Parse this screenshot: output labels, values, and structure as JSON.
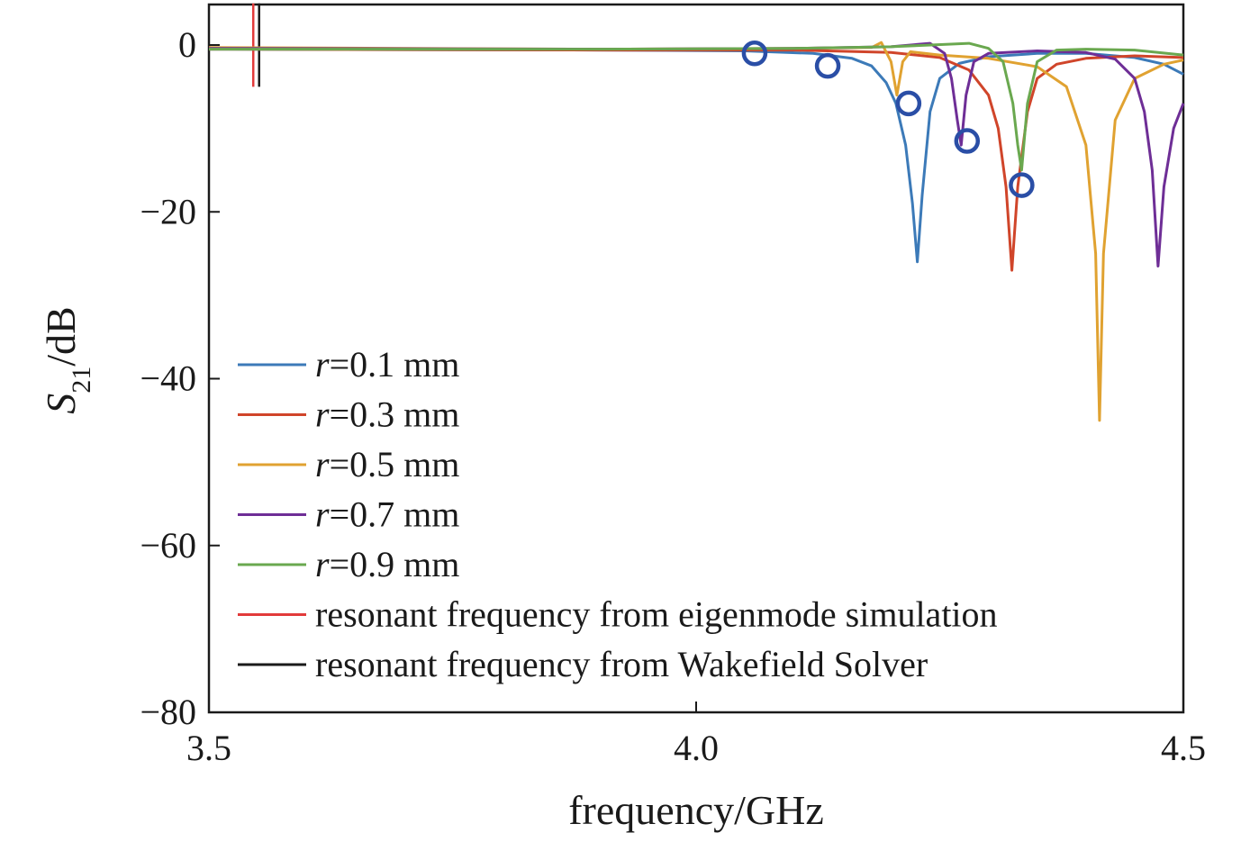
{
  "chart_data": {
    "type": "line",
    "title": "",
    "xlabel": "frequency/GHz",
    "ylabel_main": "S",
    "ylabel_sub": "21",
    "ylabel_unit": "/dB",
    "xlim": [
      3.5,
      4.5
    ],
    "ylim": [
      -80,
      5
    ],
    "x_ticks": [
      3.5,
      4.0,
      4.5
    ],
    "x_tick_labels": [
      "3.5",
      "4.0",
      "4.5"
    ],
    "y_ticks": [
      0,
      -20,
      -40,
      -60,
      -80
    ],
    "y_tick_labels": [
      "0",
      "−20",
      "−40",
      "−60",
      "−80"
    ],
    "grid": false,
    "legend_position": "lower-left",
    "series": [
      {
        "name": "r=0.1 mm",
        "name_prefix": "r",
        "name_suffix": "=0.1 mm",
        "color": "#3c7ab8",
        "points": [
          [
            3.5,
            -0.5
          ],
          [
            3.9,
            -0.6
          ],
          [
            4.05,
            -0.7
          ],
          [
            4.12,
            -1.0
          ],
          [
            4.16,
            -1.6
          ],
          [
            4.18,
            -2.5
          ],
          [
            4.195,
            -4.5
          ],
          [
            4.205,
            -7
          ],
          [
            4.215,
            -12
          ],
          [
            4.222,
            -19
          ],
          [
            4.227,
            -26
          ],
          [
            4.232,
            -18
          ],
          [
            4.24,
            -8
          ],
          [
            4.25,
            -4
          ],
          [
            4.27,
            -2.2
          ],
          [
            4.3,
            -1.4
          ],
          [
            4.35,
            -1.0
          ],
          [
            4.4,
            -1.0
          ],
          [
            4.45,
            -1.5
          ],
          [
            4.48,
            -2.3
          ],
          [
            4.5,
            -3.5
          ]
        ]
      },
      {
        "name": "r=0.3 mm",
        "name_prefix": "r",
        "name_suffix": "=0.3 mm",
        "color": "#d0452a",
        "points": [
          [
            3.5,
            -0.5
          ],
          [
            3.9,
            -0.6
          ],
          [
            4.1,
            -0.6
          ],
          [
            4.2,
            -0.9
          ],
          [
            4.25,
            -1.5
          ],
          [
            4.28,
            -3
          ],
          [
            4.3,
            -6
          ],
          [
            4.31,
            -10
          ],
          [
            4.318,
            -17
          ],
          [
            4.324,
            -27
          ],
          [
            4.33,
            -17
          ],
          [
            4.34,
            -8
          ],
          [
            4.35,
            -4
          ],
          [
            4.37,
            -2.3
          ],
          [
            4.4,
            -1.6
          ],
          [
            4.45,
            -1.3
          ],
          [
            4.5,
            -1.5
          ]
        ]
      },
      {
        "name": "r=0.5 mm",
        "name_prefix": "r",
        "name_suffix": "=0.5 mm",
        "color": "#e0a231",
        "points": [
          [
            3.5,
            -0.3
          ],
          [
            3.9,
            -0.5
          ],
          [
            4.1,
            -0.4
          ],
          [
            4.18,
            -0.3
          ],
          [
            4.19,
            0.3
          ],
          [
            4.2,
            -2
          ],
          [
            4.206,
            -6
          ],
          [
            4.212,
            -2
          ],
          [
            4.22,
            -0.8
          ],
          [
            4.25,
            -1.2
          ],
          [
            4.3,
            -1.6
          ],
          [
            4.35,
            -2.6
          ],
          [
            4.38,
            -5
          ],
          [
            4.4,
            -12
          ],
          [
            4.41,
            -25
          ],
          [
            4.414,
            -45
          ],
          [
            4.418,
            -25
          ],
          [
            4.43,
            -9
          ],
          [
            4.45,
            -4
          ],
          [
            4.48,
            -2.3
          ],
          [
            4.5,
            -1.8
          ]
        ]
      },
      {
        "name": "r=0.7 mm",
        "name_prefix": "r",
        "name_suffix": "=0.7 mm",
        "color": "#6e2e96",
        "points": [
          [
            3.5,
            -0.4
          ],
          [
            3.9,
            -0.5
          ],
          [
            4.1,
            -0.4
          ],
          [
            4.2,
            -0.2
          ],
          [
            4.24,
            0.2
          ],
          [
            4.255,
            -1
          ],
          [
            4.262,
            -4
          ],
          [
            4.268,
            -9
          ],
          [
            4.272,
            -12
          ],
          [
            4.277,
            -6
          ],
          [
            4.285,
            -2
          ],
          [
            4.3,
            -1
          ],
          [
            4.35,
            -0.7
          ],
          [
            4.4,
            -0.9
          ],
          [
            4.43,
            -1.7
          ],
          [
            4.45,
            -4
          ],
          [
            4.46,
            -8
          ],
          [
            4.468,
            -15
          ],
          [
            4.474,
            -26.5
          ],
          [
            4.48,
            -17
          ],
          [
            4.49,
            -10
          ],
          [
            4.5,
            -7
          ]
        ]
      },
      {
        "name": "r=0.9 mm",
        "name_prefix": "r",
        "name_suffix": "=0.9 mm",
        "color": "#6aa84f",
        "points": [
          [
            3.5,
            -0.5
          ],
          [
            3.9,
            -0.5
          ],
          [
            4.1,
            -0.4
          ],
          [
            4.2,
            -0.2
          ],
          [
            4.28,
            0.2
          ],
          [
            4.3,
            -0.4
          ],
          [
            4.315,
            -2
          ],
          [
            4.325,
            -7
          ],
          [
            4.33,
            -12
          ],
          [
            4.334,
            -15
          ],
          [
            4.34,
            -7
          ],
          [
            4.35,
            -2
          ],
          [
            4.37,
            -0.6
          ],
          [
            4.4,
            -0.5
          ],
          [
            4.45,
            -0.6
          ],
          [
            4.5,
            -1.2
          ]
        ]
      },
      {
        "name": "resonant frequency from eigenmode simulation",
        "color": "#e23b3b",
        "points": []
      },
      {
        "name": "resonant frequency from Wakefield Solver",
        "color": "#1a1a1a",
        "points": []
      }
    ],
    "vertical_markers": [
      {
        "x": 3.5455,
        "y_from": 5,
        "y_to": -5,
        "color": "#e23b3b"
      },
      {
        "x": 3.5515,
        "y_from": 5,
        "y_to": -5,
        "color": "#1a1a1a"
      }
    ],
    "circle_markers": {
      "color": "#2a4ea6",
      "points": [
        [
          4.06,
          -1.0
        ],
        [
          4.135,
          -2.5
        ],
        [
          4.218,
          -7.0
        ],
        [
          4.278,
          -11.5
        ],
        [
          4.334,
          -16.8
        ]
      ]
    }
  }
}
